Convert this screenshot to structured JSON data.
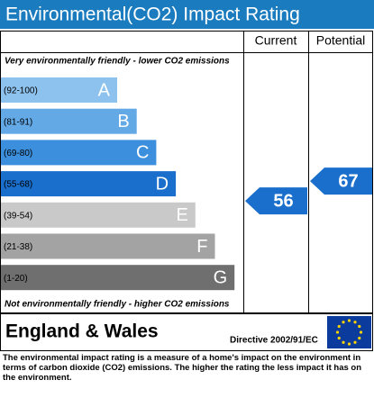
{
  "chart_data": {
    "type": "rating",
    "title": "Environmental(CO2) Impact Rating",
    "columns": [
      "Current",
      "Potential"
    ],
    "top_note": "Very environmentally friendly - lower CO2 emissions",
    "bottom_note": "Not environmentally friendly - higher CO2 emissions",
    "bands": [
      {
        "letter": "A",
        "range": {
          "min": 92,
          "max": 100,
          "label": "(92-100)"
        },
        "color": "#8ec2ee"
      },
      {
        "letter": "B",
        "range": {
          "min": 81,
          "max": 91,
          "label": "(81-91)"
        },
        "color": "#62a9e6"
      },
      {
        "letter": "C",
        "range": {
          "min": 69,
          "max": 80,
          "label": "(69-80)"
        },
        "color": "#3b8fdc"
      },
      {
        "letter": "D",
        "range": {
          "min": 55,
          "max": 68,
          "label": "(55-68)"
        },
        "color": "#1a6fcc"
      },
      {
        "letter": "E",
        "range": {
          "min": 39,
          "max": 54,
          "label": "(39-54)"
        },
        "color": "#c9c9c9"
      },
      {
        "letter": "F",
        "range": {
          "min": 21,
          "max": 38,
          "label": "(21-38)"
        },
        "color": "#a3a3a3"
      },
      {
        "letter": "G",
        "range": {
          "min": 1,
          "max": 20,
          "label": "(1-20)"
        },
        "color": "#6f6f6f"
      }
    ],
    "current": 56,
    "potential": 67,
    "arrow_color": "#1a6fcc",
    "region": "England & Wales",
    "directive": "Directive 2002/91/EC",
    "footnote": "The environmental impact rating is a measure of a home's impact on the environment in terms of carbon dioxide (CO2) emissions. The higher the rating the less impact it has on the environment."
  }
}
